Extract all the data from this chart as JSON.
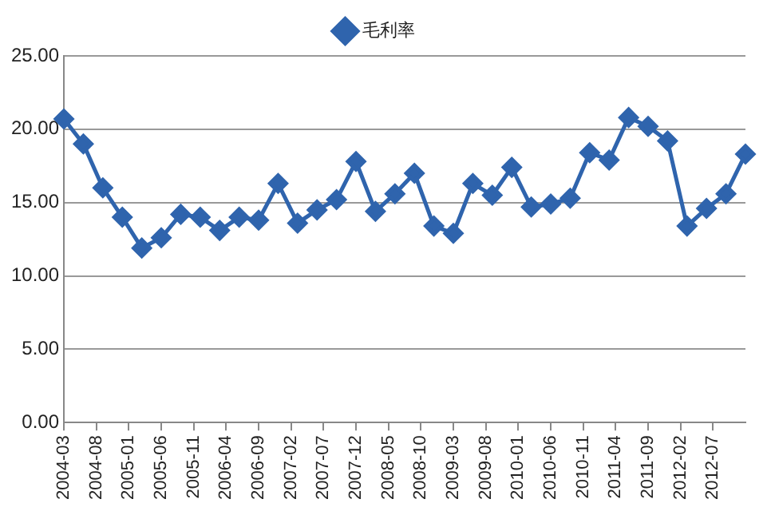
{
  "chart_data": {
    "type": "line",
    "x": [
      "2004-03",
      "2004-06",
      "2004-09",
      "2004-12",
      "2005-03",
      "2005-06",
      "2005-09",
      "2005-12",
      "2006-03",
      "2006-06",
      "2006-09",
      "2006-12",
      "2007-03",
      "2007-06",
      "2007-09",
      "2007-12",
      "2008-03",
      "2008-06",
      "2008-09",
      "2008-12",
      "2009-03",
      "2009-06",
      "2009-09",
      "2009-12",
      "2010-03",
      "2010-06",
      "2010-09",
      "2010-12",
      "2011-03",
      "2011-06",
      "2011-09",
      "2011-12",
      "2012-03",
      "2012-06",
      "2012-09",
      "2012-12"
    ],
    "series": [
      {
        "name": "毛利率",
        "color": "#2f64ad",
        "values": [
          20.7,
          19.0,
          16.0,
          14.0,
          11.9,
          12.6,
          14.2,
          14.0,
          13.1,
          14.0,
          13.8,
          16.3,
          13.6,
          14.5,
          15.2,
          17.8,
          14.4,
          15.6,
          17.0,
          13.4,
          12.9,
          16.3,
          15.5,
          17.4,
          14.7,
          14.9,
          15.3,
          18.4,
          17.9,
          20.8,
          20.2,
          19.2,
          13.4,
          14.6,
          15.6,
          18.3
        ]
      }
    ],
    "xlim": [
      "2004-03",
      "2012-12"
    ],
    "xticks": [
      "2004-03",
      "2004-08",
      "2005-01",
      "2005-06",
      "2005-11",
      "2006-04",
      "2006-09",
      "2007-02",
      "2007-07",
      "2007-12",
      "2008-05",
      "2008-10",
      "2009-03",
      "2009-08",
      "2010-01",
      "2010-06",
      "2010-11",
      "2011-04",
      "2011-09",
      "2012-02",
      "2012-07"
    ],
    "ylim": [
      0,
      25
    ],
    "yticks": [
      {
        "value": 0,
        "label": "0.00"
      },
      {
        "value": 5,
        "label": "5.00"
      },
      {
        "value": 10,
        "label": "10.00"
      },
      {
        "value": 15,
        "label": "15.00"
      },
      {
        "value": 20,
        "label": "20.00"
      },
      {
        "value": 25,
        "label": "25.00"
      }
    ],
    "grid": "y",
    "legend": "top",
    "marker": "diamond",
    "line_style": "solid"
  }
}
